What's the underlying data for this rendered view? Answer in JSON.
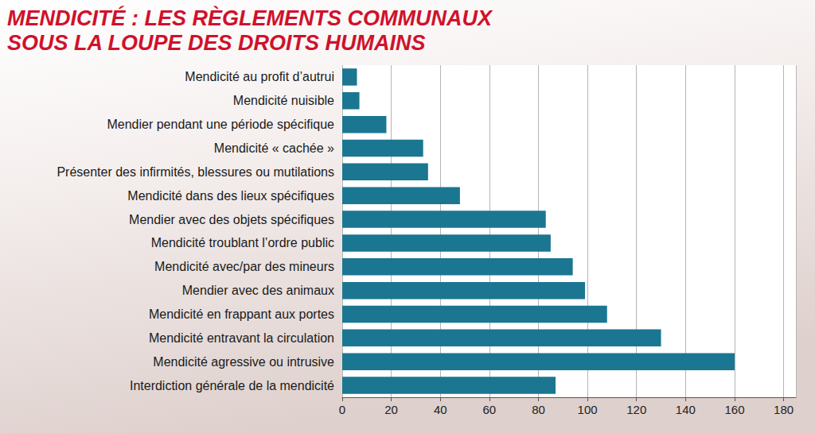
{
  "chart_data": {
    "type": "bar",
    "title": "MENDICITÉ : LES RÈGLEMENTS COMMUNAUX\nSOUS LA LOUPE DES DROITS HUMAINS",
    "orientation": "horizontal",
    "categories": [
      "Mendicité au profit d’autrui",
      "Mendicité nuisible",
      "Mendier pendant une période spécifique",
      "Mendicité « cachée »",
      "Présenter des infirmités, blessures ou mutilations",
      "Mendicité dans des lieux spécifiques",
      "Mendier avec des objets spécifiques",
      "Mendicité troublant l’ordre public",
      "Mendicité avec/par des mineurs",
      "Mendier avec des animaux",
      "Mendicité en frappant aux portes",
      "Mendicité entravant la circulation",
      "Mendicité agressive ou intrusive",
      "Interdiction générale de la mendicité"
    ],
    "values": [
      6,
      7,
      18,
      33,
      35,
      48,
      83,
      85,
      94,
      99,
      108,
      130,
      160,
      87
    ],
    "color": "#1b7691",
    "xlim": [
      0,
      185
    ],
    "xticks": [
      0,
      20,
      40,
      60,
      80,
      100,
      120,
      140,
      160,
      180
    ],
    "grid": true
  }
}
